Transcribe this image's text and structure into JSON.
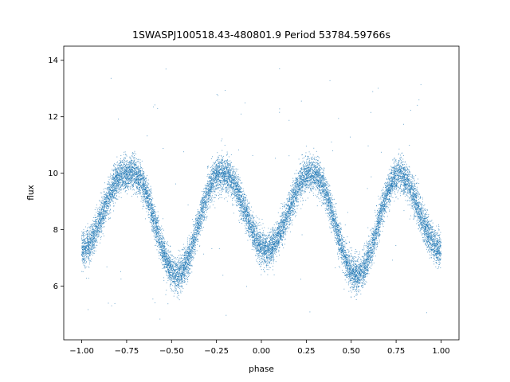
{
  "chart_data": {
    "type": "scatter",
    "title": "1SWASPJ100518.43-480801.9 Period 53784.59766s",
    "xlabel": "phase",
    "ylabel": "flux",
    "xlim": [
      -1.1,
      1.1
    ],
    "ylim": [
      4.1,
      14.5
    ],
    "xticks": [
      -1.0,
      -0.75,
      -0.5,
      -0.25,
      0.0,
      0.25,
      0.5,
      0.75,
      1.0
    ],
    "xtick_labels": [
      "−1.00",
      "−0.75",
      "−0.50",
      "−0.25",
      "0.00",
      "0.25",
      "0.50",
      "0.75",
      "1.00"
    ],
    "yticks": [
      6,
      8,
      10,
      12,
      14
    ],
    "ytick_labels": [
      "6",
      "8",
      "10",
      "12",
      "14"
    ],
    "grid": false,
    "legend": "none",
    "marker_color": "#1f77b4",
    "series": [
      {
        "light_curve_model": {
          "baseline": 10.0,
          "primary_minima": [
            -0.47,
            0.53
          ],
          "primary_minimum_flux": 6.4,
          "secondary_minima": [
            -1.0,
            0.03,
            1.0
          ],
          "secondary_minimum_flux": 7.3,
          "maxima": [
            -0.7,
            -0.22,
            0.28,
            0.78
          ],
          "maximum_flux": 10.0,
          "scatter_sigma": 0.3,
          "n_points": 16000,
          "outlier_fraction": 0.006
        }
      }
    ]
  }
}
